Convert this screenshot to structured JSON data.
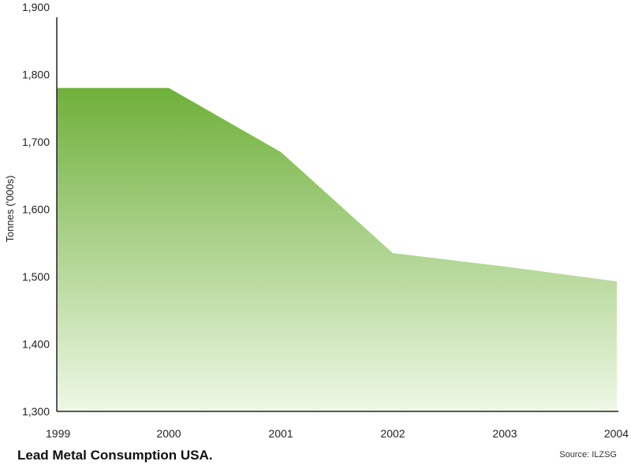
{
  "chart_data": {
    "type": "area",
    "title": "Lead Metal Consumption USA.",
    "source": "Source: ILZSG",
    "ylabel": "Tonnes ('000s)",
    "xlabel": "",
    "x": [
      "1999",
      "2000",
      "2001",
      "2002",
      "2003",
      "2004"
    ],
    "values": [
      1780,
      1780,
      1685,
      1535,
      1515,
      1493
    ],
    "ylim": [
      1300,
      1900
    ],
    "y_ticks": [
      "1,300",
      "1,400",
      "1,500",
      "1,600",
      "1,700",
      "1,800",
      "1,900"
    ],
    "grid": false,
    "colors": {
      "fill_top": "#6fb03a",
      "fill_bottom": "#eef8e6",
      "axis": "#222222"
    }
  }
}
